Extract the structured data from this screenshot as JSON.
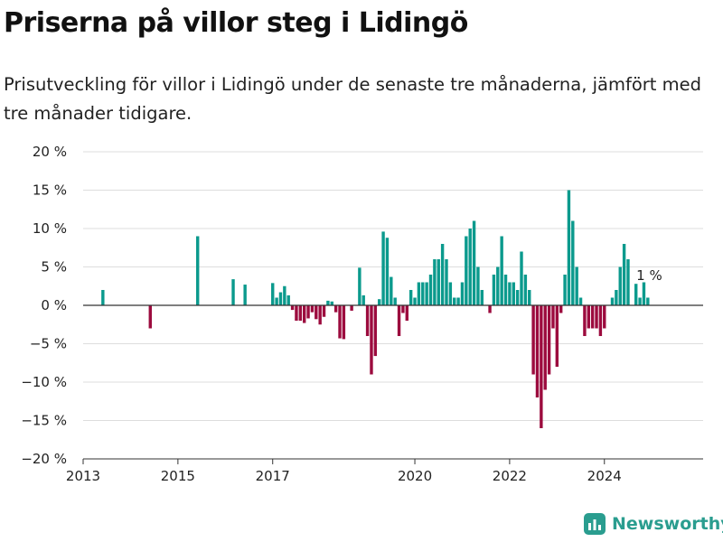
{
  "header": {
    "title": "Priserna på villor steg i Lidingö",
    "subtitle": "Prisutveckling för villor i Lidingö under de senaste tre månaderna, jämfört med tre månader tidigare."
  },
  "brand": {
    "name": "Newsworthy",
    "color": "#2a9d8f"
  },
  "colors": {
    "positive": "#0b9a8d",
    "negative": "#9c0b3e",
    "axis": "#333333",
    "grid": "#dddddd"
  },
  "chart_data": {
    "type": "bar",
    "x_unit": "month",
    "x_start": "2013-01",
    "ylim": [
      -20,
      20
    ],
    "yticks": [
      20,
      15,
      10,
      5,
      0,
      -5,
      -10,
      -15,
      -20
    ],
    "ytick_labels": [
      "20 %",
      "15 %",
      "10 %",
      "5 %",
      "0 %",
      "−5 %",
      "−10 %",
      "−15 %",
      "−20 %"
    ],
    "xticks": [
      {
        "date": "2013-01",
        "label": "2013"
      },
      {
        "date": "2015-01",
        "label": "2015"
      },
      {
        "date": "2017-01",
        "label": "2017"
      },
      {
        "date": "2020-01",
        "label": "2020"
      },
      {
        "date": "2022-01",
        "label": "2022"
      },
      {
        "date": "2024-01",
        "label": "2024"
      }
    ],
    "x_end": "2026-02",
    "annotation": {
      "date": "2024-11",
      "label": "1 %"
    },
    "points": [
      {
        "date": "2013-06",
        "value": 2
      },
      {
        "date": "2014-06",
        "value": -3
      },
      {
        "date": "2015-06",
        "value": 9
      },
      {
        "date": "2016-03",
        "value": 3.4
      },
      {
        "date": "2016-06",
        "value": 2.7
      },
      {
        "date": "2017-01",
        "value": 2.9
      },
      {
        "date": "2017-02",
        "value": 1
      },
      {
        "date": "2017-03",
        "value": 1.7
      },
      {
        "date": "2017-04",
        "value": 2.5
      },
      {
        "date": "2017-05",
        "value": 1.3
      },
      {
        "date": "2017-06",
        "value": -0.6
      },
      {
        "date": "2017-07",
        "value": -2
      },
      {
        "date": "2017-08",
        "value": -2
      },
      {
        "date": "2017-09",
        "value": -2.3
      },
      {
        "date": "2017-10",
        "value": -1.7
      },
      {
        "date": "2017-11",
        "value": -0.9
      },
      {
        "date": "2017-12",
        "value": -1.8
      },
      {
        "date": "2018-01",
        "value": -2.5
      },
      {
        "date": "2018-02",
        "value": -1.5
      },
      {
        "date": "2018-03",
        "value": 0.6
      },
      {
        "date": "2018-04",
        "value": 0.5
      },
      {
        "date": "2018-05",
        "value": -0.9
      },
      {
        "date": "2018-06",
        "value": -4.3
      },
      {
        "date": "2018-07",
        "value": -4.4
      },
      {
        "date": "2018-09",
        "value": -0.7
      },
      {
        "date": "2018-11",
        "value": 4.9
      },
      {
        "date": "2018-12",
        "value": 1.3
      },
      {
        "date": "2019-01",
        "value": -4
      },
      {
        "date": "2019-02",
        "value": -9
      },
      {
        "date": "2019-03",
        "value": -6.6
      },
      {
        "date": "2019-04",
        "value": 0.8
      },
      {
        "date": "2019-05",
        "value": 9.6
      },
      {
        "date": "2019-06",
        "value": 8.8
      },
      {
        "date": "2019-07",
        "value": 3.7
      },
      {
        "date": "2019-08",
        "value": 1
      },
      {
        "date": "2019-09",
        "value": -4
      },
      {
        "date": "2019-10",
        "value": -1
      },
      {
        "date": "2019-11",
        "value": -2
      },
      {
        "date": "2019-12",
        "value": 2
      },
      {
        "date": "2020-01",
        "value": 1
      },
      {
        "date": "2020-02",
        "value": 3
      },
      {
        "date": "2020-03",
        "value": 3
      },
      {
        "date": "2020-04",
        "value": 3
      },
      {
        "date": "2020-05",
        "value": 4
      },
      {
        "date": "2020-06",
        "value": 6
      },
      {
        "date": "2020-07",
        "value": 6
      },
      {
        "date": "2020-08",
        "value": 8
      },
      {
        "date": "2020-09",
        "value": 6
      },
      {
        "date": "2020-10",
        "value": 3
      },
      {
        "date": "2020-11",
        "value": 1
      },
      {
        "date": "2020-12",
        "value": 1
      },
      {
        "date": "2021-01",
        "value": 3
      },
      {
        "date": "2021-02",
        "value": 9
      },
      {
        "date": "2021-03",
        "value": 10
      },
      {
        "date": "2021-04",
        "value": 11
      },
      {
        "date": "2021-05",
        "value": 5
      },
      {
        "date": "2021-06",
        "value": 2
      },
      {
        "date": "2021-08",
        "value": -1
      },
      {
        "date": "2021-09",
        "value": 4
      },
      {
        "date": "2021-10",
        "value": 5
      },
      {
        "date": "2021-11",
        "value": 9
      },
      {
        "date": "2021-12",
        "value": 4
      },
      {
        "date": "2022-01",
        "value": 3
      },
      {
        "date": "2022-02",
        "value": 3
      },
      {
        "date": "2022-03",
        "value": 2
      },
      {
        "date": "2022-04",
        "value": 7
      },
      {
        "date": "2022-05",
        "value": 4
      },
      {
        "date": "2022-06",
        "value": 2
      },
      {
        "date": "2022-07",
        "value": -9
      },
      {
        "date": "2022-08",
        "value": -12
      },
      {
        "date": "2022-09",
        "value": -16
      },
      {
        "date": "2022-10",
        "value": -11
      },
      {
        "date": "2022-11",
        "value": -9
      },
      {
        "date": "2022-12",
        "value": -3
      },
      {
        "date": "2023-01",
        "value": -8
      },
      {
        "date": "2023-02",
        "value": -1
      },
      {
        "date": "2023-03",
        "value": 4
      },
      {
        "date": "2023-04",
        "value": 15
      },
      {
        "date": "2023-05",
        "value": 11
      },
      {
        "date": "2023-06",
        "value": 5
      },
      {
        "date": "2023-07",
        "value": 1
      },
      {
        "date": "2023-08",
        "value": -4
      },
      {
        "date": "2023-09",
        "value": -3
      },
      {
        "date": "2023-10",
        "value": -3
      },
      {
        "date": "2023-11",
        "value": -3
      },
      {
        "date": "2023-12",
        "value": -4
      },
      {
        "date": "2024-01",
        "value": -3
      },
      {
        "date": "2024-03",
        "value": 1
      },
      {
        "date": "2024-04",
        "value": 2
      },
      {
        "date": "2024-05",
        "value": 5
      },
      {
        "date": "2024-06",
        "value": 8
      },
      {
        "date": "2024-07",
        "value": 6
      },
      {
        "date": "2024-09",
        "value": 2.8
      },
      {
        "date": "2024-10",
        "value": 1
      },
      {
        "date": "2024-11",
        "value": 3
      },
      {
        "date": "2024-12",
        "value": 1
      }
    ]
  }
}
